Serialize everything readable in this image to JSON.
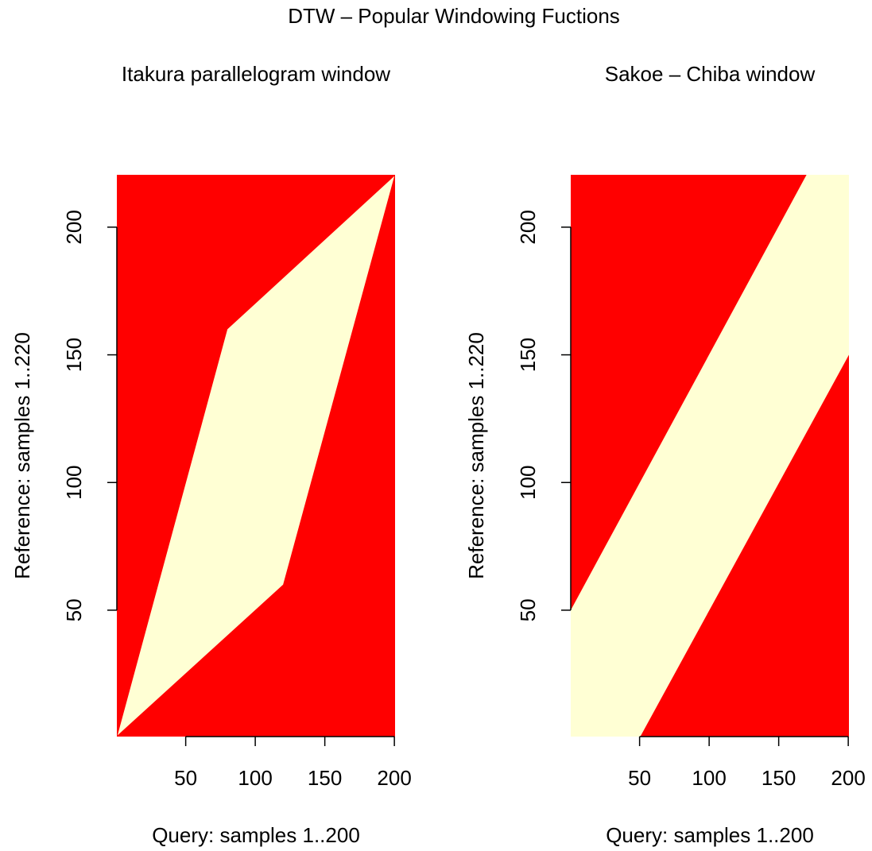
{
  "title": "DTW – Popular Windowing Fuctions",
  "chart_data": [
    {
      "type": "region",
      "title": "Itakura parallelogram window",
      "xlabel": "Query: samples 1..200",
      "ylabel": "Reference: samples 1..220",
      "xlim": [
        0.5,
        200.5
      ],
      "ylim": [
        0.5,
        220.5
      ],
      "xticks": [
        50,
        100,
        150,
        200
      ],
      "yticks": [
        50,
        100,
        150,
        200
      ],
      "background_color": "#ff0000",
      "color": "#ffffd4",
      "region": {
        "x": [
          1,
          80,
          200,
          120
        ],
        "y": [
          1,
          160,
          220,
          60
        ]
      }
    },
    {
      "type": "region",
      "title": "Sakoe – Chiba window",
      "xlabel": "Query: samples 1..200",
      "ylabel": "Reference: samples 1..220",
      "xlim": [
        0.5,
        200.5
      ],
      "ylim": [
        0.5,
        220.5
      ],
      "xticks": [
        50,
        100,
        150,
        200
      ],
      "yticks": [
        50,
        100,
        150,
        200
      ],
      "background_color": "#ff0000",
      "color": "#ffffd4",
      "region": {
        "x": [
          0.5,
          0.5,
          170,
          200.5,
          200.5,
          50.5
        ],
        "y": [
          0.5,
          50,
          220.5,
          220.5,
          150,
          0.5
        ]
      }
    }
  ]
}
